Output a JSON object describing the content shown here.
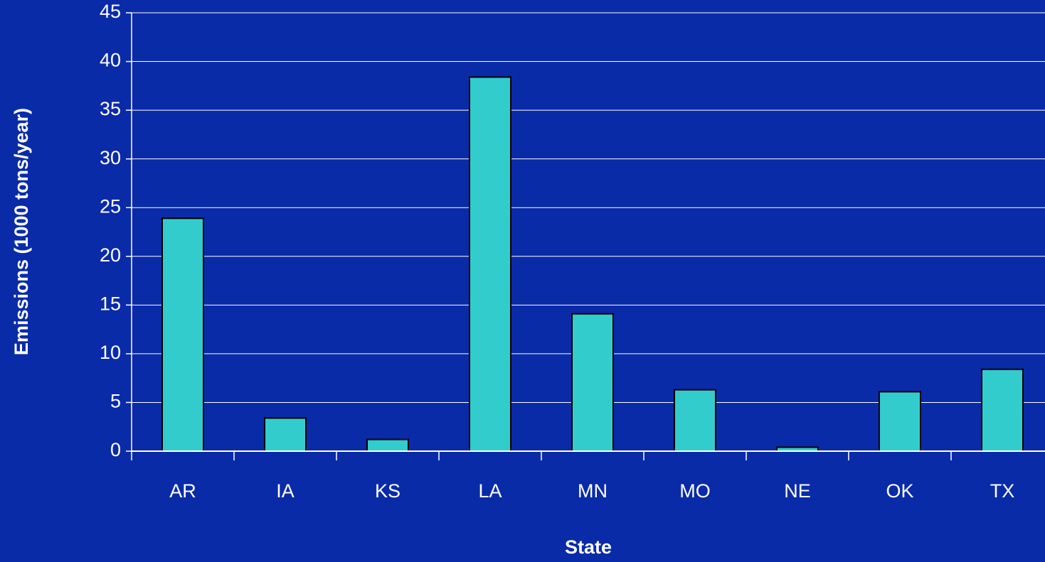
{
  "chart_data": {
    "type": "bar",
    "x_label": "State",
    "y_label": "Emissions (1000 tons/year)",
    "categories": [
      "AR",
      "IA",
      "KS",
      "LA",
      "MN",
      "MO",
      "NE",
      "OK",
      "TX"
    ],
    "values": [
      23.9,
      3.4,
      1.2,
      38.4,
      14.1,
      6.3,
      0.4,
      6.1,
      8.4
    ],
    "color": "#33cccc",
    "ylim": [
      0,
      45
    ],
    "yticks": [
      0,
      5,
      10,
      15,
      20,
      25,
      30,
      35,
      40,
      45
    ],
    "grid": true
  }
}
